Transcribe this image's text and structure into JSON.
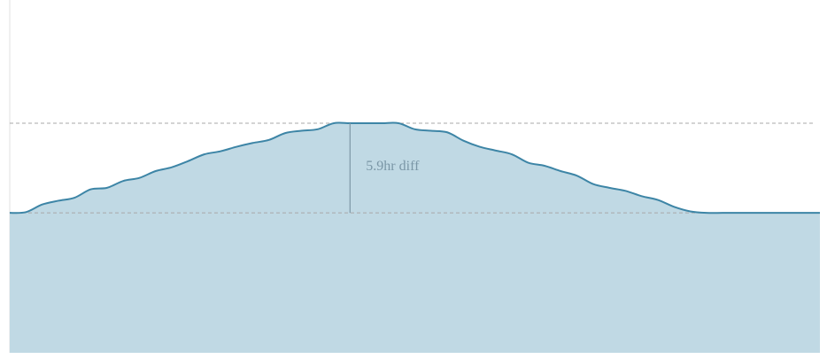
{
  "chart_data": {
    "type": "area",
    "title": "",
    "xlabel": "",
    "ylabel": "",
    "baseline": 0,
    "peak": 5.9,
    "ylim": [
      -9.2,
      14
    ],
    "x": [
      0,
      1,
      2,
      3,
      4,
      5,
      6,
      7,
      8,
      9,
      10,
      11,
      12,
      13,
      14,
      15,
      16,
      17,
      18,
      19,
      20,
      21,
      22,
      23,
      24,
      25,
      26,
      27,
      28,
      29,
      30,
      31,
      32,
      33,
      34,
      35,
      36,
      37,
      38,
      39,
      40,
      41,
      42,
      43,
      44,
      45,
      46,
      47,
      48,
      49,
      50
    ],
    "series": [
      {
        "values": [
          0.0,
          0.05,
          0.55,
          0.8,
          1.0,
          1.55,
          1.65,
          2.1,
          2.3,
          2.75,
          3.0,
          3.4,
          3.85,
          4.05,
          4.35,
          4.6,
          4.8,
          5.25,
          5.4,
          5.5,
          5.9,
          5.9,
          5.9,
          5.9,
          5.9,
          5.5,
          5.4,
          5.3,
          4.75,
          4.35,
          4.1,
          3.85,
          3.3,
          3.1,
          2.75,
          2.45,
          1.9,
          1.65,
          1.45,
          1.1,
          0.85,
          0.4,
          0.1,
          0.0,
          0.0,
          0.0,
          0.0,
          0.0,
          0.0,
          0.0,
          0.0
        ]
      }
    ],
    "reference_lines": [
      0,
      5.9
    ],
    "annotations": [
      {
        "x": 21,
        "text": "5.9hr diff"
      }
    ],
    "colors": {
      "area_fill": "#c0d9e4",
      "line_stroke": "#3d85a6",
      "reference_line": "#a8a8a8",
      "annotation_line": "#7d97a6",
      "axis_line": "#e2e2e2"
    },
    "grid": false,
    "legend": "none"
  }
}
